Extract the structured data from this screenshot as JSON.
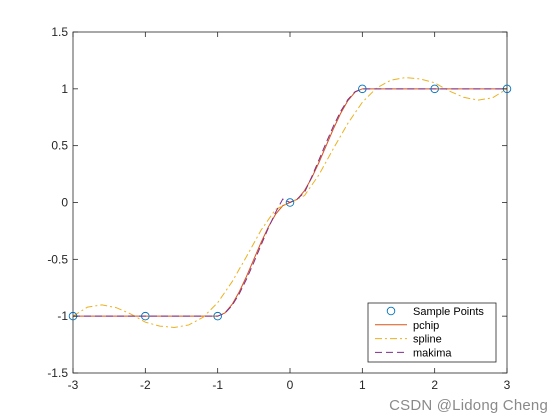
{
  "chart_data": {
    "type": "line",
    "title": "",
    "xlabel": "",
    "ylabel": "",
    "xlim": [
      -3,
      3
    ],
    "ylim": [
      -1.5,
      1.5
    ],
    "grid": false,
    "legend_position": "bottom-right",
    "xticks": [
      "-3",
      "-2",
      "-1",
      "0",
      "1",
      "2",
      "3"
    ],
    "xtick_values": [
      -3,
      -2,
      -1,
      0,
      1,
      2,
      3
    ],
    "yticks": [
      "-1.5",
      "-1",
      "-0.5",
      "0",
      "0.5",
      "1",
      "1.5"
    ],
    "ytick_values": [
      -1.5,
      -1,
      -0.5,
      0,
      0.5,
      1,
      1.5
    ],
    "sample_points": {
      "name": "Sample Points",
      "x": [
        -3,
        -2,
        -1,
        0,
        1,
        2,
        3
      ],
      "y": [
        -1,
        -1,
        -1,
        0,
        1,
        1,
        1
      ],
      "color": "#0072BD"
    },
    "series": [
      {
        "name": "pchip",
        "color": "#D95319",
        "style": "solid",
        "x": [
          -3,
          -2,
          -1,
          -0.9,
          -0.8,
          -0.7,
          -0.6,
          -0.5,
          -0.4,
          -0.3,
          -0.2,
          -0.1,
          0,
          0.1,
          0.2,
          0.3,
          0.4,
          0.5,
          0.6,
          0.7,
          0.8,
          0.9,
          1,
          2,
          3
        ],
        "y": [
          -1,
          -1,
          -1,
          -0.972,
          -0.896,
          -0.784,
          -0.648,
          -0.5,
          -0.352,
          -0.216,
          -0.104,
          -0.028,
          0,
          0.028,
          0.104,
          0.216,
          0.352,
          0.5,
          0.648,
          0.784,
          0.896,
          0.972,
          1,
          1,
          1
        ]
      },
      {
        "name": "spline",
        "color": "#EDB120",
        "style": "dashdot",
        "x": [
          -3,
          -2.8,
          -2.6,
          -2.4,
          -2.2,
          -2,
          -1.8,
          -1.6,
          -1.4,
          -1.2,
          -1,
          -0.8,
          -0.6,
          -0.4,
          -0.2,
          0,
          0.2,
          0.4,
          0.6,
          0.8,
          1,
          1.2,
          1.4,
          1.6,
          1.8,
          2,
          2.2,
          2.4,
          2.6,
          2.8,
          3
        ],
        "y": [
          -1,
          -0.9207,
          -0.9006,
          -0.9255,
          -0.9811,
          -1.0531,
          -1.0871,
          -1.0993,
          -1.0773,
          -1.0089,
          -0.8819,
          -0.6966,
          -0.4743,
          -0.2436,
          -0.0603,
          0,
          0.0603,
          0.2436,
          0.4743,
          0.6966,
          0.8819,
          1.0089,
          1.0773,
          1.0993,
          1.0871,
          1.0531,
          0.9811,
          0.9255,
          0.9006,
          0.9207,
          1
        ]
      },
      {
        "name": "makima",
        "color": "#7E2F8E",
        "style": "dashed",
        "x": [
          -3,
          -2,
          -1,
          -0.9,
          -0.8,
          -0.7,
          -0.6,
          -0.5,
          -0.4,
          -0.3,
          -0.2,
          -0.1,
          0,
          0.1,
          0.2,
          0.3,
          0.4,
          0.5,
          0.6,
          0.7,
          0.8,
          0.9,
          1,
          2,
          3
        ],
        "y": [
          -1,
          -1,
          -1,
          -0.9747,
          -0.9053,
          -0.8013,
          -0.672,
          -0.5267,
          -0.3747,
          -0.2253,
          -0.088,
          0.0307,
          0,
          0.0307,
          0.088,
          0.2253,
          0.3747,
          0.5267,
          0.672,
          0.8013,
          0.9053,
          0.9747,
          1,
          1,
          1
        ]
      }
    ]
  },
  "watermark": "CSDN @Lidong Cheng"
}
